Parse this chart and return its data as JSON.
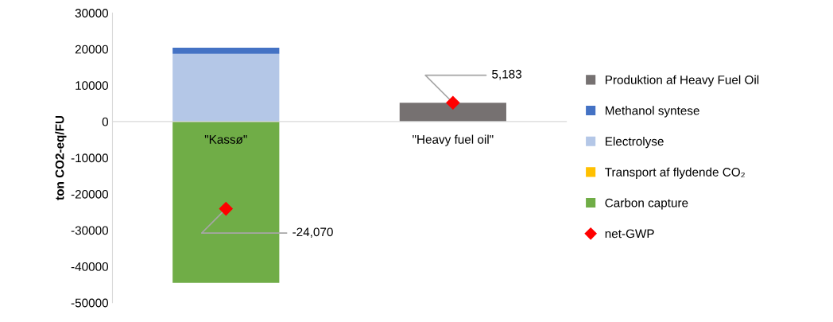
{
  "chart_data": {
    "type": "bar",
    "stacked": true,
    "ylabel": "ton CO2-eq/FU",
    "categories": [
      "\"Kassø\"",
      "\"Heavy fuel oil\""
    ],
    "series": [
      {
        "name": "Carbon capture",
        "color": "#70ad47",
        "values": [
          -44500,
          null
        ]
      },
      {
        "name": "Transport af flydende CO₂",
        "color": "#ffc000",
        "values": [
          0,
          null
        ]
      },
      {
        "name": "Electrolyse",
        "color": "#b4c7e7",
        "values": [
          18700,
          null
        ]
      },
      {
        "name": "Methanol syntese",
        "color": "#4472c4",
        "values": [
          1700,
          null
        ]
      },
      {
        "name": "Produktion af Heavy Fuel Oil",
        "color": "#767171",
        "values": [
          null,
          5200
        ]
      },
      {
        "name": "net-GWP",
        "type": "scatter",
        "color": "#ff0000",
        "marker": "diamond",
        "x": [
          "\"Kassø\"",
          "\"Heavy fuel oil\""
        ],
        "values": [
          -24070,
          5183
        ],
        "value_labels": [
          "-24,070",
          "5,183"
        ]
      }
    ],
    "ylim": [
      -50000,
      30000
    ],
    "yticks": [
      -50000,
      -40000,
      -30000,
      -20000,
      -10000,
      0,
      10000,
      20000,
      30000
    ],
    "grid": false,
    "legend": "right"
  }
}
